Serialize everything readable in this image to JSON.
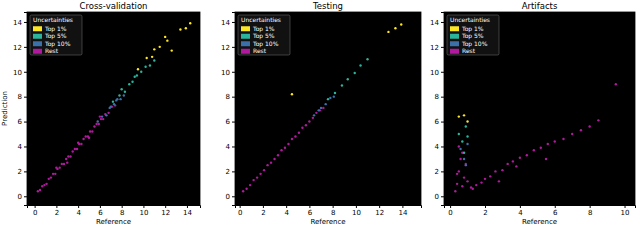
{
  "chart_data": [
    {
      "type": "scatter",
      "title": "Cross-validation",
      "xlabel": "Reference",
      "ylabel": "Prediction",
      "xlim": [
        -0.7,
        15.2
      ],
      "ylim": [
        -0.7,
        14.8
      ],
      "xticks": [
        0,
        2,
        4,
        6,
        8,
        10,
        12,
        14
      ],
      "yticks": [
        0,
        2,
        4,
        6,
        8,
        10,
        12,
        14
      ],
      "grid": false,
      "legend": "upper left",
      "legend_title": "Uncertainties",
      "marker": "circle",
      "series": [
        {
          "name": "Top 1%",
          "color": "#fde725",
          "x": [
            9.5,
            10.3,
            11.0,
            11.5,
            12.2,
            12.6,
            13.4,
            13.9,
            14.3,
            10.8,
            12.0
          ],
          "values": [
            10.2,
            11.1,
            11.8,
            12.0,
            12.5,
            11.7,
            13.4,
            13.5,
            13.9,
            11.2,
            12.8
          ]
        },
        {
          "name": "Top 5%",
          "color": "#2ab49b",
          "x": [
            7.2,
            7.8,
            8.3,
            8.7,
            9.0,
            9.4,
            9.8,
            10.2,
            10.6,
            11.0,
            8.0,
            9.2
          ],
          "values": [
            7.6,
            8.1,
            8.4,
            9.0,
            9.2,
            9.7,
            10.0,
            10.4,
            10.5,
            10.9,
            8.6,
            9.6
          ]
        },
        {
          "name": "Top 10%",
          "color": "#3b70a8",
          "x": [
            5.8,
            6.2,
            6.6,
            7.0,
            7.3,
            7.6,
            7.9,
            8.2,
            6.9,
            7.5
          ],
          "values": [
            6.0,
            6.4,
            6.5,
            7.2,
            7.4,
            7.8,
            7.8,
            8.1,
            7.1,
            7.7
          ]
        },
        {
          "name": "Rest",
          "color": "#b0199e",
          "x": [
            0.3,
            0.5,
            0.7,
            0.9,
            1.1,
            1.3,
            1.5,
            1.7,
            1.9,
            2.1,
            2.3,
            2.5,
            2.7,
            2.9,
            3.1,
            3.3,
            3.5,
            3.7,
            3.9,
            4.1,
            4.3,
            4.5,
            4.7,
            4.9,
            5.1,
            5.3,
            5.5,
            5.7,
            5.9,
            6.1,
            6.3,
            6.5,
            6.8,
            7.1,
            7.4,
            2.0,
            3.0,
            4.0,
            5.0,
            6.0
          ],
          "values": [
            0.4,
            0.5,
            0.8,
            0.9,
            1.0,
            1.4,
            1.5,
            1.8,
            1.8,
            2.2,
            2.3,
            2.6,
            2.6,
            3.0,
            3.2,
            3.2,
            3.6,
            3.8,
            3.8,
            4.2,
            4.2,
            4.6,
            4.8,
            4.8,
            5.2,
            5.2,
            5.6,
            5.8,
            5.8,
            6.2,
            6.2,
            6.6,
            6.7,
            7.2,
            7.3,
            2.3,
            2.7,
            4.3,
            4.7,
            6.4
          ]
        }
      ]
    },
    {
      "type": "scatter",
      "title": "Testing",
      "xlabel": "Reference",
      "xlim": [
        -0.4,
        15.6
      ],
      "ylim": [
        -0.7,
        14.8
      ],
      "xticks": [
        0,
        2,
        4,
        6,
        8,
        10,
        12,
        14
      ],
      "yticks": [
        0,
        2,
        4,
        6,
        8,
        10,
        12,
        14
      ],
      "grid": false,
      "legend": "upper left",
      "legend_title": "Uncertainties",
      "marker": "circle",
      "series": [
        {
          "name": "Top 1%",
          "color": "#fde725",
          "x": [
            4.5,
            12.8,
            13.4,
            13.9
          ],
          "values": [
            8.2,
            13.2,
            13.5,
            13.8
          ]
        },
        {
          "name": "Top 5%",
          "color": "#2ab49b",
          "x": [
            7.6,
            8.2,
            8.8,
            9.3,
            9.9,
            10.4,
            11.0
          ],
          "values": [
            7.8,
            8.3,
            8.9,
            9.4,
            9.9,
            10.5,
            11.0
          ]
        },
        {
          "name": "Top 10%",
          "color": "#3b70a8",
          "x": [
            6.4,
            7.0,
            7.4,
            7.8,
            8.1,
            6.8
          ],
          "values": [
            6.5,
            7.1,
            7.4,
            7.9,
            8.0,
            6.9
          ]
        },
        {
          "name": "Rest",
          "color": "#b0199e",
          "x": [
            0.3,
            0.6,
            0.9,
            1.2,
            1.5,
            1.8,
            2.1,
            2.4,
            2.7,
            3.0,
            3.3,
            3.6,
            3.9,
            4.2,
            4.5,
            4.8,
            5.1,
            5.4,
            5.7,
            6.0,
            6.3,
            6.6,
            6.9,
            7.2
          ],
          "values": [
            0.4,
            0.6,
            0.9,
            1.3,
            1.5,
            1.8,
            2.1,
            2.5,
            2.7,
            3.0,
            3.3,
            3.7,
            3.9,
            4.2,
            4.6,
            4.8,
            5.1,
            5.5,
            5.7,
            6.0,
            6.3,
            6.7,
            6.9,
            7.1
          ]
        }
      ]
    },
    {
      "type": "scatter",
      "title": "Artifacts",
      "xlabel": "Reference",
      "xlim": [
        -0.35,
        10.6
      ],
      "ylim": [
        -0.7,
        14.8
      ],
      "xticks": [
        0,
        2,
        4,
        6,
        8,
        10
      ],
      "yticks": [
        0,
        2,
        4,
        6,
        8,
        10,
        12,
        14
      ],
      "grid": false,
      "legend": "upper left",
      "legend_title": "Uncertainties",
      "marker": "circle",
      "series": [
        {
          "name": "Top 1%",
          "color": "#fde725",
          "x": [
            0.5,
            0.8,
            1.0
          ],
          "values": [
            6.4,
            6.5,
            6.0
          ]
        },
        {
          "name": "Top 5%",
          "color": "#2ab49b",
          "x": [
            0.5,
            0.7,
            0.8,
            0.9,
            1.0
          ],
          "values": [
            5.0,
            4.4,
            3.5,
            5.6,
            4.8
          ]
        },
        {
          "name": "Top 10%",
          "color": "#3b70a8",
          "x": [
            0.6,
            0.8,
            0.9,
            1.0
          ],
          "values": [
            3.8,
            3.0,
            2.5,
            4.2
          ]
        },
        {
          "name": "Rest",
          "color": "#b0199e",
          "x": [
            0.3,
            0.4,
            0.5,
            0.6,
            0.7,
            0.8,
            0.9,
            1.0,
            1.2,
            1.5,
            1.8,
            2.0,
            2.3,
            2.6,
            3.0,
            3.3,
            3.6,
            4.0,
            4.4,
            4.8,
            5.2,
            5.6,
            6.0,
            6.5,
            7.0,
            7.5,
            8.0,
            8.5,
            9.5,
            0.5,
            0.7,
            1.3,
            2.8,
            3.8,
            5.5,
            0.4
          ],
          "values": [
            0.4,
            1.0,
            2.0,
            3.0,
            0.8,
            1.5,
            2.6,
            1.2,
            0.7,
            0.9,
            1.1,
            1.4,
            1.6,
            2.0,
            2.1,
            2.6,
            2.8,
            3.1,
            3.3,
            3.7,
            3.9,
            4.2,
            4.4,
            4.6,
            5.0,
            5.3,
            5.6,
            6.1,
            9.0,
            4.0,
            3.5,
            0.6,
            1.2,
            2.4,
            3.0,
            1.8
          ]
        }
      ]
    }
  ]
}
